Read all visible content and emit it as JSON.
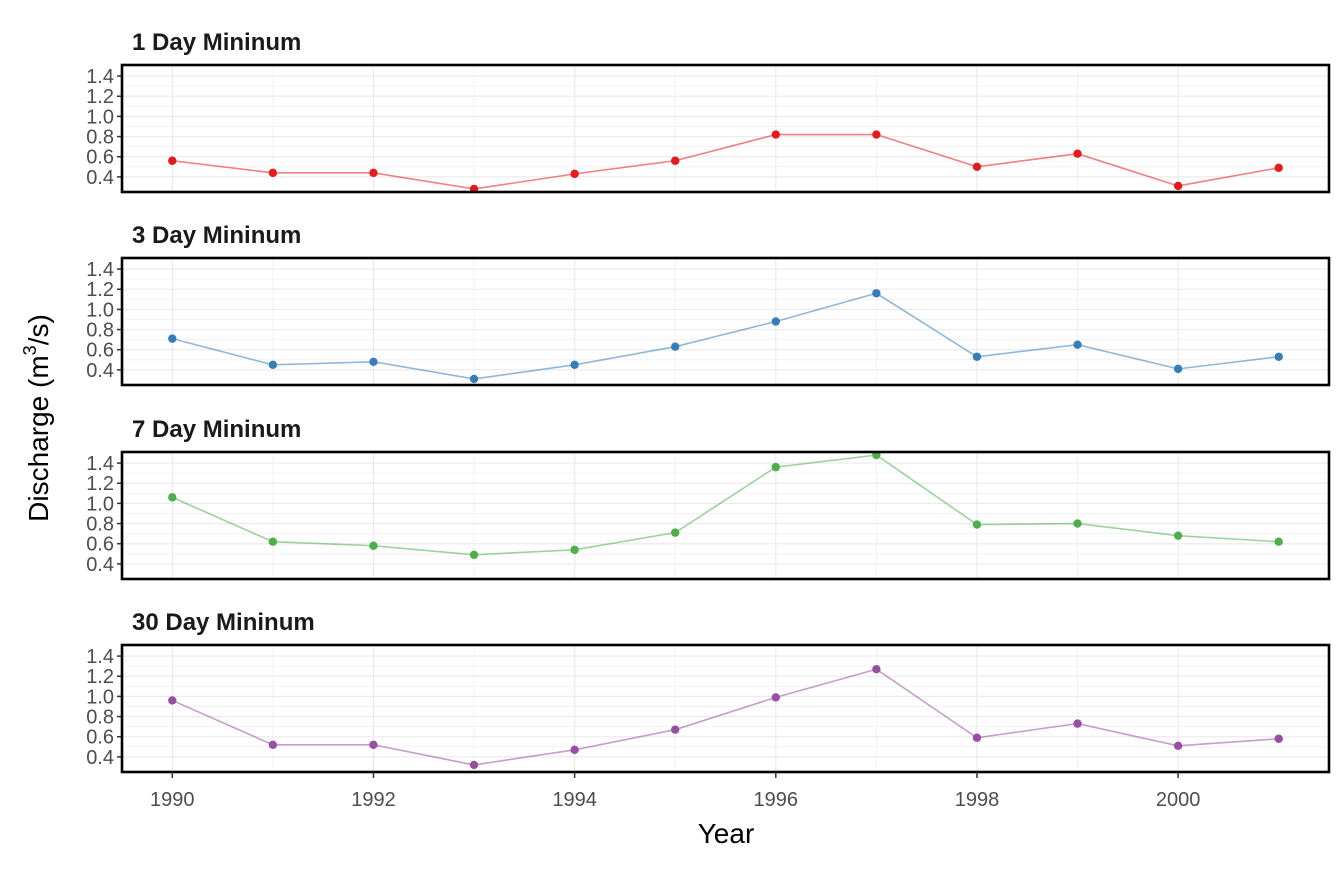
{
  "chart_data": {
    "type": "line",
    "xlabel": "Year",
    "ylabel": "Discharge",
    "ylabel_unit": "m",
    "ylabel_unit_sup": "3",
    "ylabel_unit_tail": "/s",
    "x": [
      1990,
      1991,
      1992,
      1993,
      1994,
      1995,
      1996,
      1997,
      1998,
      1999,
      2000,
      2001
    ],
    "x_ticks": [
      1990,
      1992,
      1994,
      1996,
      1998,
      2000
    ],
    "xlim": [
      1989.5,
      2001.5
    ],
    "y_ticks": [
      0.4,
      0.6,
      0.8,
      1.0,
      1.2,
      1.4
    ],
    "y_tick_labels": [
      "0.4",
      "0.6",
      "0.8",
      "1.0",
      "1.2",
      "1.4"
    ],
    "ylim": [
      0.25,
      1.51
    ],
    "grid": true,
    "legend": "none",
    "series": [
      {
        "name": "1 Day Mininum",
        "color": "#E41A1C",
        "values": [
          0.56,
          0.44,
          0.44,
          0.28,
          0.43,
          0.56,
          0.82,
          0.82,
          0.5,
          0.63,
          0.31,
          0.49
        ]
      },
      {
        "name": "3 Day Mininum",
        "color": "#377EB8",
        "values": [
          0.71,
          0.45,
          0.48,
          0.31,
          0.45,
          0.63,
          0.88,
          1.16,
          0.53,
          0.65,
          0.41,
          0.53
        ]
      },
      {
        "name": "7 Day Mininum",
        "color": "#4DAF4A",
        "values": [
          1.06,
          0.62,
          0.58,
          0.49,
          0.54,
          0.71,
          1.36,
          1.48,
          0.79,
          0.8,
          0.68,
          0.62
        ]
      },
      {
        "name": "30 Day Mininum",
        "color": "#984EA3",
        "values": [
          0.96,
          0.52,
          0.52,
          0.32,
          0.47,
          0.67,
          0.99,
          1.27,
          0.59,
          0.73,
          0.51,
          0.58
        ]
      }
    ]
  }
}
